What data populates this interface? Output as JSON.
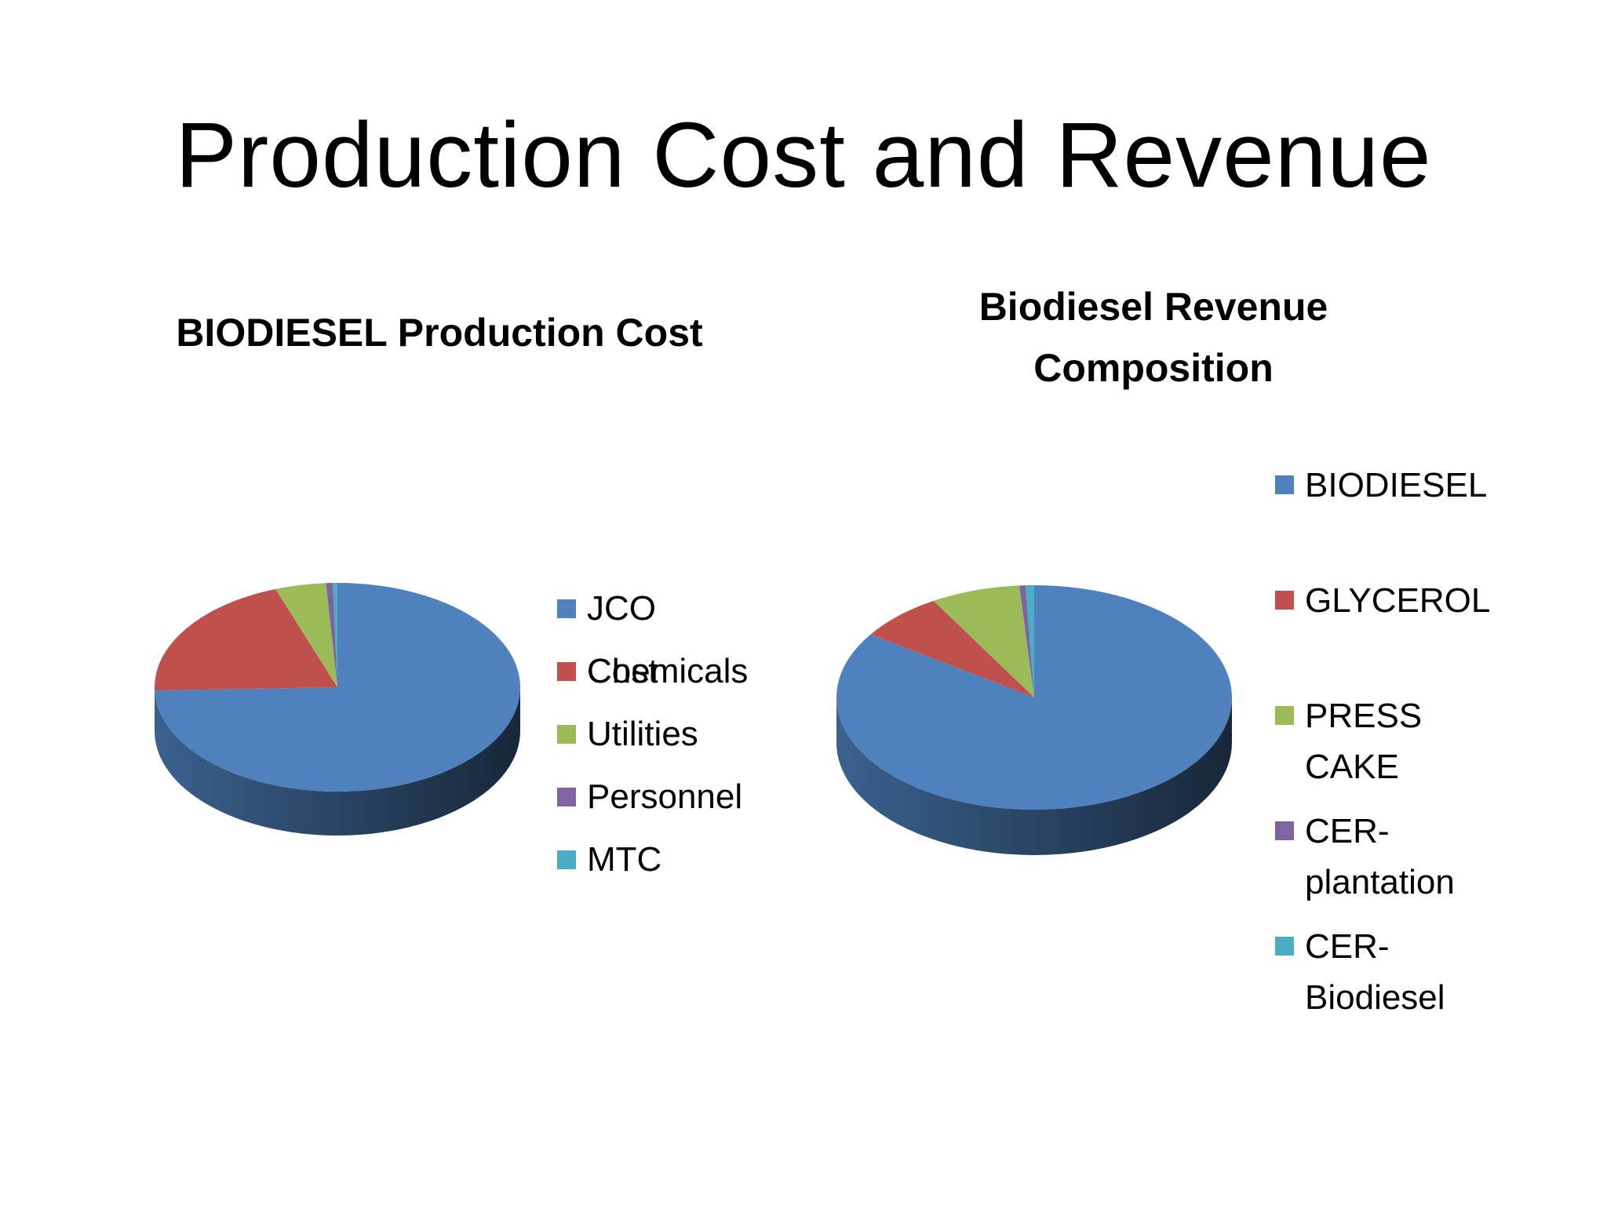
{
  "slide": {
    "title": "Production Cost and Revenue"
  },
  "chart_data": [
    {
      "type": "pie",
      "title": "BIODIESEL Production Cost",
      "legend_position": "right",
      "categories": [
        "JCO Cost",
        "Chemicals",
        "Utilities",
        "Personnel",
        "MTC"
      ],
      "values": [
        74.5,
        20.0,
        4.5,
        0.6,
        0.4
      ],
      "colors": [
        "#4F81BD",
        "#C0504D",
        "#9BBB59",
        "#8064A2",
        "#4BACC6"
      ]
    },
    {
      "type": "pie",
      "title": "Biodiesel Revenue Composition",
      "legend_position": "right",
      "categories": [
        "BIODIESEL",
        "GLYCEROL",
        "PRESS CAKE",
        "CER-plantation",
        "CER-Biodiesel"
      ],
      "legend_labels": [
        "BIODIESEL",
        "GLYCEROL",
        "PRESS\nCAKE",
        "CER-\nplantation",
        "CER-\nBiodiesel"
      ],
      "values": [
        84.5,
        7.0,
        7.3,
        0.5,
        0.7
      ],
      "colors": [
        "#4F81BD",
        "#C0504D",
        "#9BBB59",
        "#8064A2",
        "#4BACC6"
      ]
    }
  ]
}
